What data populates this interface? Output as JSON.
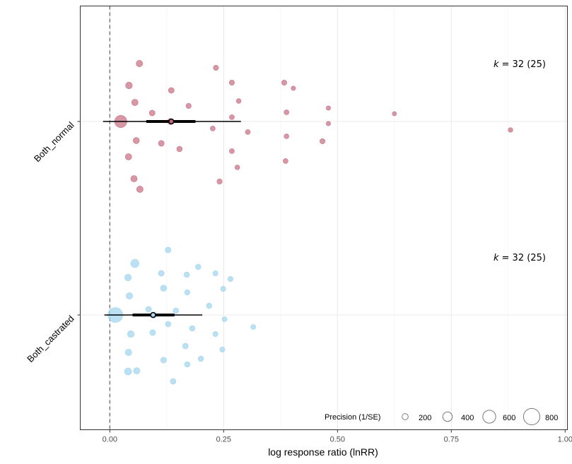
{
  "chart_data": {
    "type": "orchard",
    "xlabel": "log response ratio (lnRR)",
    "xlim": [
      -0.065,
      1.005
    ],
    "x_ticks": [
      0,
      0.25,
      0.5,
      0.75,
      1
    ],
    "x_tick_labels": [
      "0.00",
      "0.25",
      "0.50",
      "0.75",
      "1.00"
    ],
    "reference_line": 0,
    "grid": true,
    "legend": {
      "title": "Precision (1/SE)",
      "position": "bottom-right",
      "entries": [
        {
          "label": "200",
          "value": 200
        },
        {
          "label": "400",
          "value": 400
        },
        {
          "label": "600",
          "value": 600
        },
        {
          "label": "800",
          "value": 800
        }
      ]
    },
    "series": [
      {
        "name": "Both_normal",
        "color": "#c4667b",
        "k_label": "k",
        "k_text": "= 32 (25)",
        "estimate": 0.135,
        "ci": [
          0.08,
          0.188
        ],
        "pi": [
          -0.015,
          0.288
        ],
        "points": [
          {
            "x": 0.065,
            "jitter": 82,
            "precision": 230
          },
          {
            "x": 0.233,
            "jitter": 76,
            "precision": 150
          },
          {
            "x": 0.268,
            "jitter": 55,
            "precision": 150
          },
          {
            "x": 0.383,
            "jitter": 55,
            "precision": 150
          },
          {
            "x": 0.403,
            "jitter": 47,
            "precision": 110
          },
          {
            "x": 0.042,
            "jitter": 51,
            "precision": 240
          },
          {
            "x": 0.135,
            "jitter": 44,
            "precision": 180
          },
          {
            "x": 0.283,
            "jitter": 29,
            "precision": 130
          },
          {
            "x": 0.055,
            "jitter": 27,
            "precision": 220
          },
          {
            "x": 0.173,
            "jitter": 22,
            "precision": 150
          },
          {
            "x": 0.48,
            "jitter": 19,
            "precision": 110
          },
          {
            "x": 0.093,
            "jitter": 12,
            "precision": 180
          },
          {
            "x": 0.388,
            "jitter": 13,
            "precision": 140
          },
          {
            "x": 0.625,
            "jitter": 11,
            "precision": 100
          },
          {
            "x": 0.268,
            "jitter": 6,
            "precision": 140
          },
          {
            "x": 0.024,
            "jitter": 0,
            "precision": 560
          },
          {
            "x": 0.133,
            "jitter": 0,
            "precision": 200
          },
          {
            "x": 0.48,
            "jitter": -3,
            "precision": 110
          },
          {
            "x": 0.226,
            "jitter": -10,
            "precision": 140
          },
          {
            "x": 0.303,
            "jitter": -15,
            "precision": 140
          },
          {
            "x": 0.88,
            "jitter": -12,
            "precision": 120
          },
          {
            "x": 0.388,
            "jitter": -21,
            "precision": 130
          },
          {
            "x": 0.058,
            "jitter": -27,
            "precision": 210
          },
          {
            "x": 0.467,
            "jitter": -28,
            "precision": 150
          },
          {
            "x": 0.113,
            "jitter": -31,
            "precision": 190
          },
          {
            "x": 0.153,
            "jitter": -39,
            "precision": 170
          },
          {
            "x": 0.268,
            "jitter": -42,
            "precision": 140
          },
          {
            "x": 0.041,
            "jitter": -50,
            "precision": 220
          },
          {
            "x": 0.386,
            "jitter": -56,
            "precision": 140
          },
          {
            "x": 0.28,
            "jitter": -65,
            "precision": 130
          },
          {
            "x": 0.053,
            "jitter": -81,
            "precision": 220
          },
          {
            "x": 0.241,
            "jitter": -85,
            "precision": 150
          },
          {
            "x": 0.066,
            "jitter": -96,
            "precision": 230
          }
        ]
      },
      {
        "name": "Both_castrated",
        "color": "#a6d8f0",
        "k_label": "k",
        "k_text": "= 32 (25)",
        "estimate": 0.095,
        "ci": [
          0.05,
          0.142
        ],
        "pi": [
          -0.012,
          0.203
        ],
        "points": [
          {
            "x": 0.128,
            "jitter": 92,
            "precision": 190
          },
          {
            "x": 0.055,
            "jitter": 73,
            "precision": 330
          },
          {
            "x": 0.194,
            "jitter": 68,
            "precision": 170
          },
          {
            "x": 0.113,
            "jitter": 59,
            "precision": 190
          },
          {
            "x": 0.232,
            "jitter": 59,
            "precision": 150
          },
          {
            "x": 0.169,
            "jitter": 57,
            "precision": 170
          },
          {
            "x": 0.265,
            "jitter": 51,
            "precision": 150
          },
          {
            "x": 0.04,
            "jitter": 53,
            "precision": 240
          },
          {
            "x": 0.118,
            "jitter": 38,
            "precision": 210
          },
          {
            "x": 0.249,
            "jitter": 37,
            "precision": 150
          },
          {
            "x": 0.17,
            "jitter": 32,
            "precision": 160
          },
          {
            "x": 0.043,
            "jitter": 27,
            "precision": 230
          },
          {
            "x": 0.218,
            "jitter": 13,
            "precision": 170
          },
          {
            "x": 0.085,
            "jitter": 8,
            "precision": 190
          },
          {
            "x": 0.145,
            "jitter": 6,
            "precision": 170
          },
          {
            "x": 0.012,
            "jitter": 0,
            "precision": 720
          },
          {
            "x": 0.096,
            "jitter": 0,
            "precision": 200
          },
          {
            "x": 0.252,
            "jitter": -6,
            "precision": 140
          },
          {
            "x": 0.128,
            "jitter": -13,
            "precision": 170
          },
          {
            "x": 0.315,
            "jitter": -17,
            "precision": 140
          },
          {
            "x": 0.181,
            "jitter": -19,
            "precision": 170
          },
          {
            "x": 0.094,
            "jitter": -25,
            "precision": 190
          },
          {
            "x": 0.046,
            "jitter": -27,
            "precision": 240
          },
          {
            "x": 0.232,
            "jitter": -27,
            "precision": 150
          },
          {
            "x": 0.166,
            "jitter": -44,
            "precision": 180
          },
          {
            "x": 0.247,
            "jitter": -49,
            "precision": 150
          },
          {
            "x": 0.041,
            "jitter": -53,
            "precision": 230
          },
          {
            "x": 0.2,
            "jitter": -62,
            "precision": 170
          },
          {
            "x": 0.118,
            "jitter": -64,
            "precision": 190
          },
          {
            "x": 0.17,
            "jitter": -70,
            "precision": 170
          },
          {
            "x": 0.04,
            "jitter": -80,
            "precision": 260
          },
          {
            "x": 0.059,
            "jitter": -79,
            "precision": 220
          },
          {
            "x": 0.139,
            "jitter": -94,
            "precision": 180
          }
        ]
      }
    ]
  }
}
